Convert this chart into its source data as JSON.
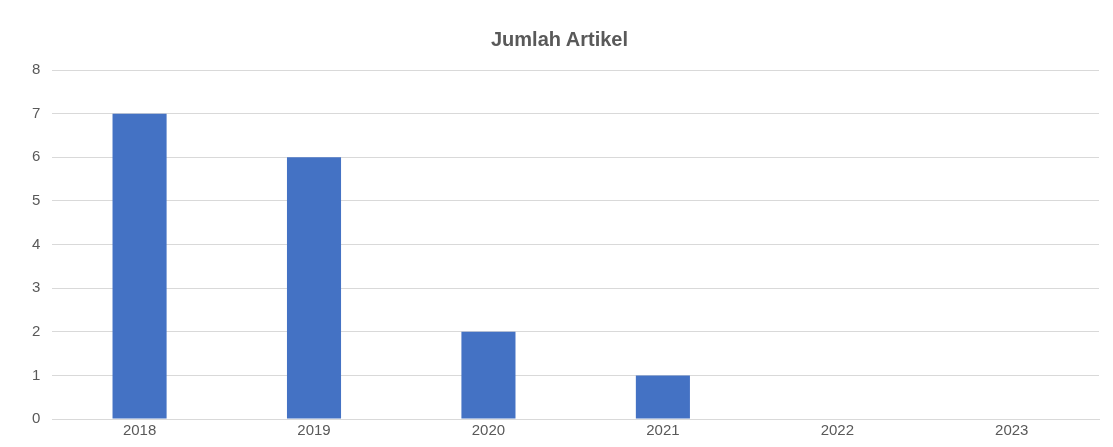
{
  "chart_data": {
    "type": "bar",
    "title": "Jumlah Artikel",
    "categories": [
      "2018",
      "2019",
      "2020",
      "2021",
      "2022",
      "2023"
    ],
    "values": [
      7,
      6,
      2,
      1,
      0,
      0
    ],
    "color": "#4472c4",
    "ylim": [
      0,
      8
    ],
    "yticks": [
      0,
      1,
      2,
      3,
      4,
      5,
      6,
      7,
      8
    ],
    "grid": "y",
    "legend": false
  }
}
